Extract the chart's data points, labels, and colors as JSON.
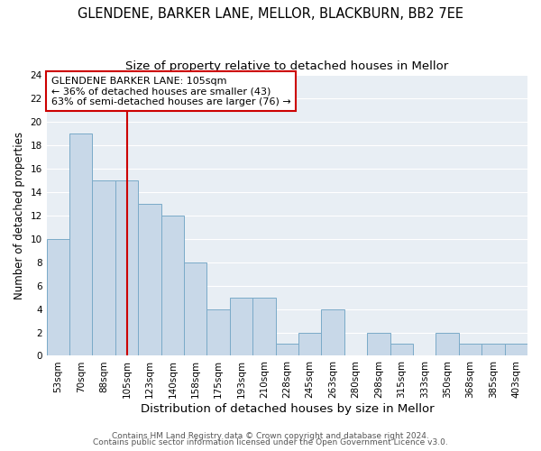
{
  "title": "GLENDENE, BARKER LANE, MELLOR, BLACKBURN, BB2 7EE",
  "subtitle": "Size of property relative to detached houses in Mellor",
  "xlabel": "Distribution of detached houses by size in Mellor",
  "ylabel": "Number of detached properties",
  "bin_labels": [
    "53sqm",
    "70sqm",
    "88sqm",
    "105sqm",
    "123sqm",
    "140sqm",
    "158sqm",
    "175sqm",
    "193sqm",
    "210sqm",
    "228sqm",
    "245sqm",
    "263sqm",
    "280sqm",
    "298sqm",
    "315sqm",
    "333sqm",
    "350sqm",
    "368sqm",
    "385sqm",
    "403sqm"
  ],
  "bar_heights": [
    10,
    19,
    15,
    15,
    13,
    12,
    8,
    4,
    5,
    5,
    1,
    2,
    4,
    0,
    2,
    1,
    0,
    2,
    1,
    1,
    1
  ],
  "bar_color": "#c8d8e8",
  "bar_edgecolor": "#7aaac8",
  "vline_x": 3,
  "vline_color": "#cc0000",
  "annotation_title": "GLENDENE BARKER LANE: 105sqm",
  "annotation_line2": "← 36% of detached houses are smaller (43)",
  "annotation_line3": "63% of semi-detached houses are larger (76) →",
  "annotation_box_edgecolor": "#cc0000",
  "ylim": [
    0,
    24
  ],
  "yticks": [
    0,
    2,
    4,
    6,
    8,
    10,
    12,
    14,
    16,
    18,
    20,
    22,
    24
  ],
  "footer1": "Contains HM Land Registry data © Crown copyright and database right 2024.",
  "footer2": "Contains public sector information licensed under the Open Government Licence v3.0.",
  "background_color": "#ffffff",
  "plot_background_color": "#e8eef4",
  "grid_color": "#ffffff",
  "title_fontsize": 10.5,
  "subtitle_fontsize": 9.5,
  "xlabel_fontsize": 9.5,
  "ylabel_fontsize": 8.5,
  "tick_fontsize": 7.5,
  "annotation_fontsize": 8,
  "footer_fontsize": 6.5
}
